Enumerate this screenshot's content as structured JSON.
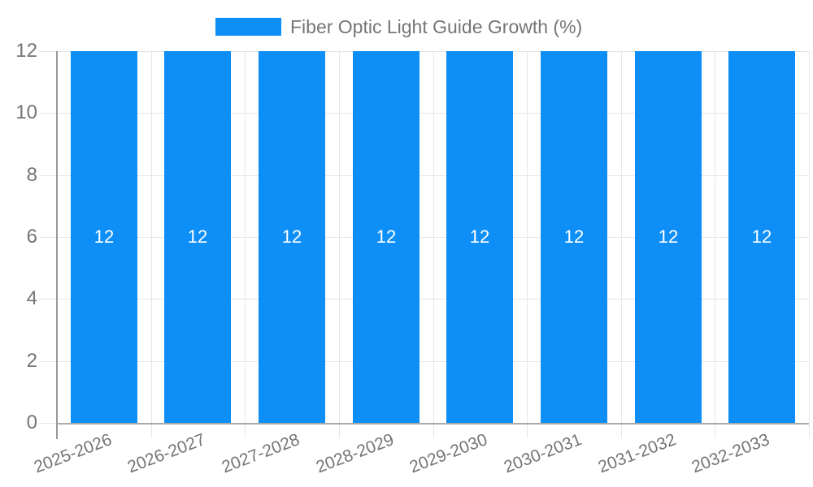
{
  "chart_data": {
    "type": "bar",
    "title": "Fiber Optic Light Guide Growth (%)",
    "legend": {
      "label": "Fiber Optic Light Guide Growth (%)",
      "position": "top-center"
    },
    "categories": [
      "2025-2026",
      "2026-2027",
      "2027-2028",
      "2028-2029",
      "2029-2030",
      "2030-2031",
      "2031-2032",
      "2032-2033"
    ],
    "values": [
      12,
      12,
      12,
      12,
      12,
      12,
      12,
      12
    ],
    "bar_value_labels": [
      "12",
      "12",
      "12",
      "12",
      "12",
      "12",
      "12",
      "12"
    ],
    "xlabel": "",
    "ylabel": "",
    "ylim": [
      0,
      12
    ],
    "yticks": [
      0,
      2,
      4,
      6,
      8,
      10,
      12
    ],
    "ytick_labels": [
      "0",
      "2",
      "4",
      "6",
      "8",
      "10",
      "12"
    ],
    "grid": "horizontal and vertical category boundaries",
    "x_label_rotation_deg": -21,
    "colors": {
      "bar": "#0d8ff7",
      "grid": "#e6e6e6",
      "y_axis_line": "#999999",
      "baseline": "#aaaaaa",
      "tick_text": "#757575",
      "legend_text": "#757575",
      "bar_value_text": "#ffffff",
      "background": "#ffffff"
    }
  }
}
